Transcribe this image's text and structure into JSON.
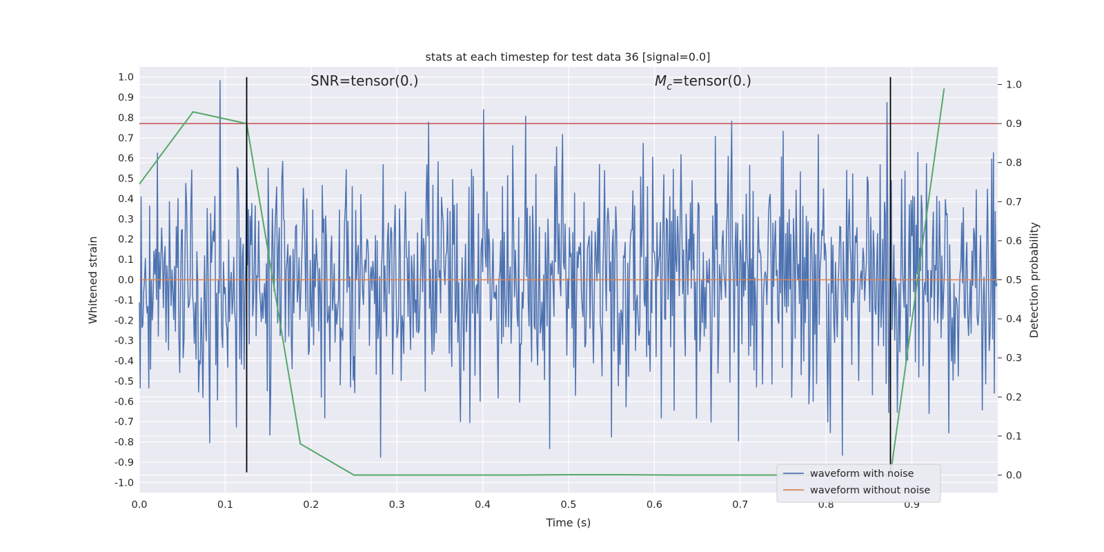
{
  "chart_data": {
    "type": "line",
    "title": "stats at each timestep for test data 36 [signal=0.0]",
    "xlabel": "Time (s)",
    "ylabel": "Whitened strain",
    "y2label": "Detection probability",
    "xlim": [
      0.0,
      1.0
    ],
    "ylim": [
      -1.05,
      1.05
    ],
    "y2lim": [
      -0.045,
      1.045
    ],
    "grid": true,
    "legend_placement": "lower-right",
    "x_ticks": [
      "0.0",
      "0.1",
      "0.2",
      "0.3",
      "0.4",
      "0.5",
      "0.6",
      "0.7",
      "0.8",
      "0.9"
    ],
    "y_ticks": [
      "1.0",
      "0.9",
      "0.8",
      "0.7",
      "0.6",
      "0.5",
      "0.4",
      "0.3",
      "0.2",
      "0.1",
      "0.0",
      "-0.1",
      "-0.2",
      "-0.3",
      "-0.4",
      "-0.5",
      "-0.6",
      "-0.7",
      "-0.8",
      "-0.9",
      "-1.0"
    ],
    "y2_ticks": [
      "1.0",
      "0.9",
      "0.8",
      "0.7",
      "0.6",
      "0.5",
      "0.4",
      "0.3",
      "0.2",
      "0.1",
      "0.0"
    ],
    "annotations": {
      "snr": "SNR=tensor(0.)",
      "mc_symbol": "M",
      "mc_sub": "c",
      "mc_rest": "=tensor(0.)"
    },
    "series": [
      {
        "name": "waveform with noise",
        "color": "#4c72b0",
        "kind": "noise",
        "n_samples": 1000,
        "amplitude_range": [
          -0.95,
          1.0
        ]
      },
      {
        "name": "waveform without noise",
        "color": "#dd8452",
        "kind": "constant",
        "value": 0.0
      }
    ],
    "detection_probability": {
      "color": "#55a868",
      "axis": "right",
      "x": [
        0.0,
        0.0625,
        0.125,
        0.1875,
        0.25,
        0.3125,
        0.375,
        0.4375,
        0.5,
        0.5625,
        0.625,
        0.6875,
        0.75,
        0.8125,
        0.875,
        0.9375
      ],
      "y": [
        0.745,
        0.93,
        0.9,
        0.08,
        0.0,
        0.0,
        0.0,
        0.0,
        0.001,
        0.001,
        0.0,
        0.0,
        0.0,
        0.0,
        0.0,
        0.99
      ]
    },
    "threshold": {
      "color": "#c44e52",
      "axis": "right",
      "value": 0.9
    },
    "vlines": {
      "color": "#000000",
      "x": [
        0.125,
        0.875
      ],
      "ymin": -0.95,
      "ymax": 1.0
    }
  },
  "legend": {
    "items": [
      {
        "label": "waveform with noise",
        "color": "#4c72b0"
      },
      {
        "label": "waveform without noise",
        "color": "#dd8452"
      }
    ]
  },
  "colors": {
    "plot_background": "#eaeaf2",
    "grid": "#ffffff",
    "text": "#262626"
  }
}
